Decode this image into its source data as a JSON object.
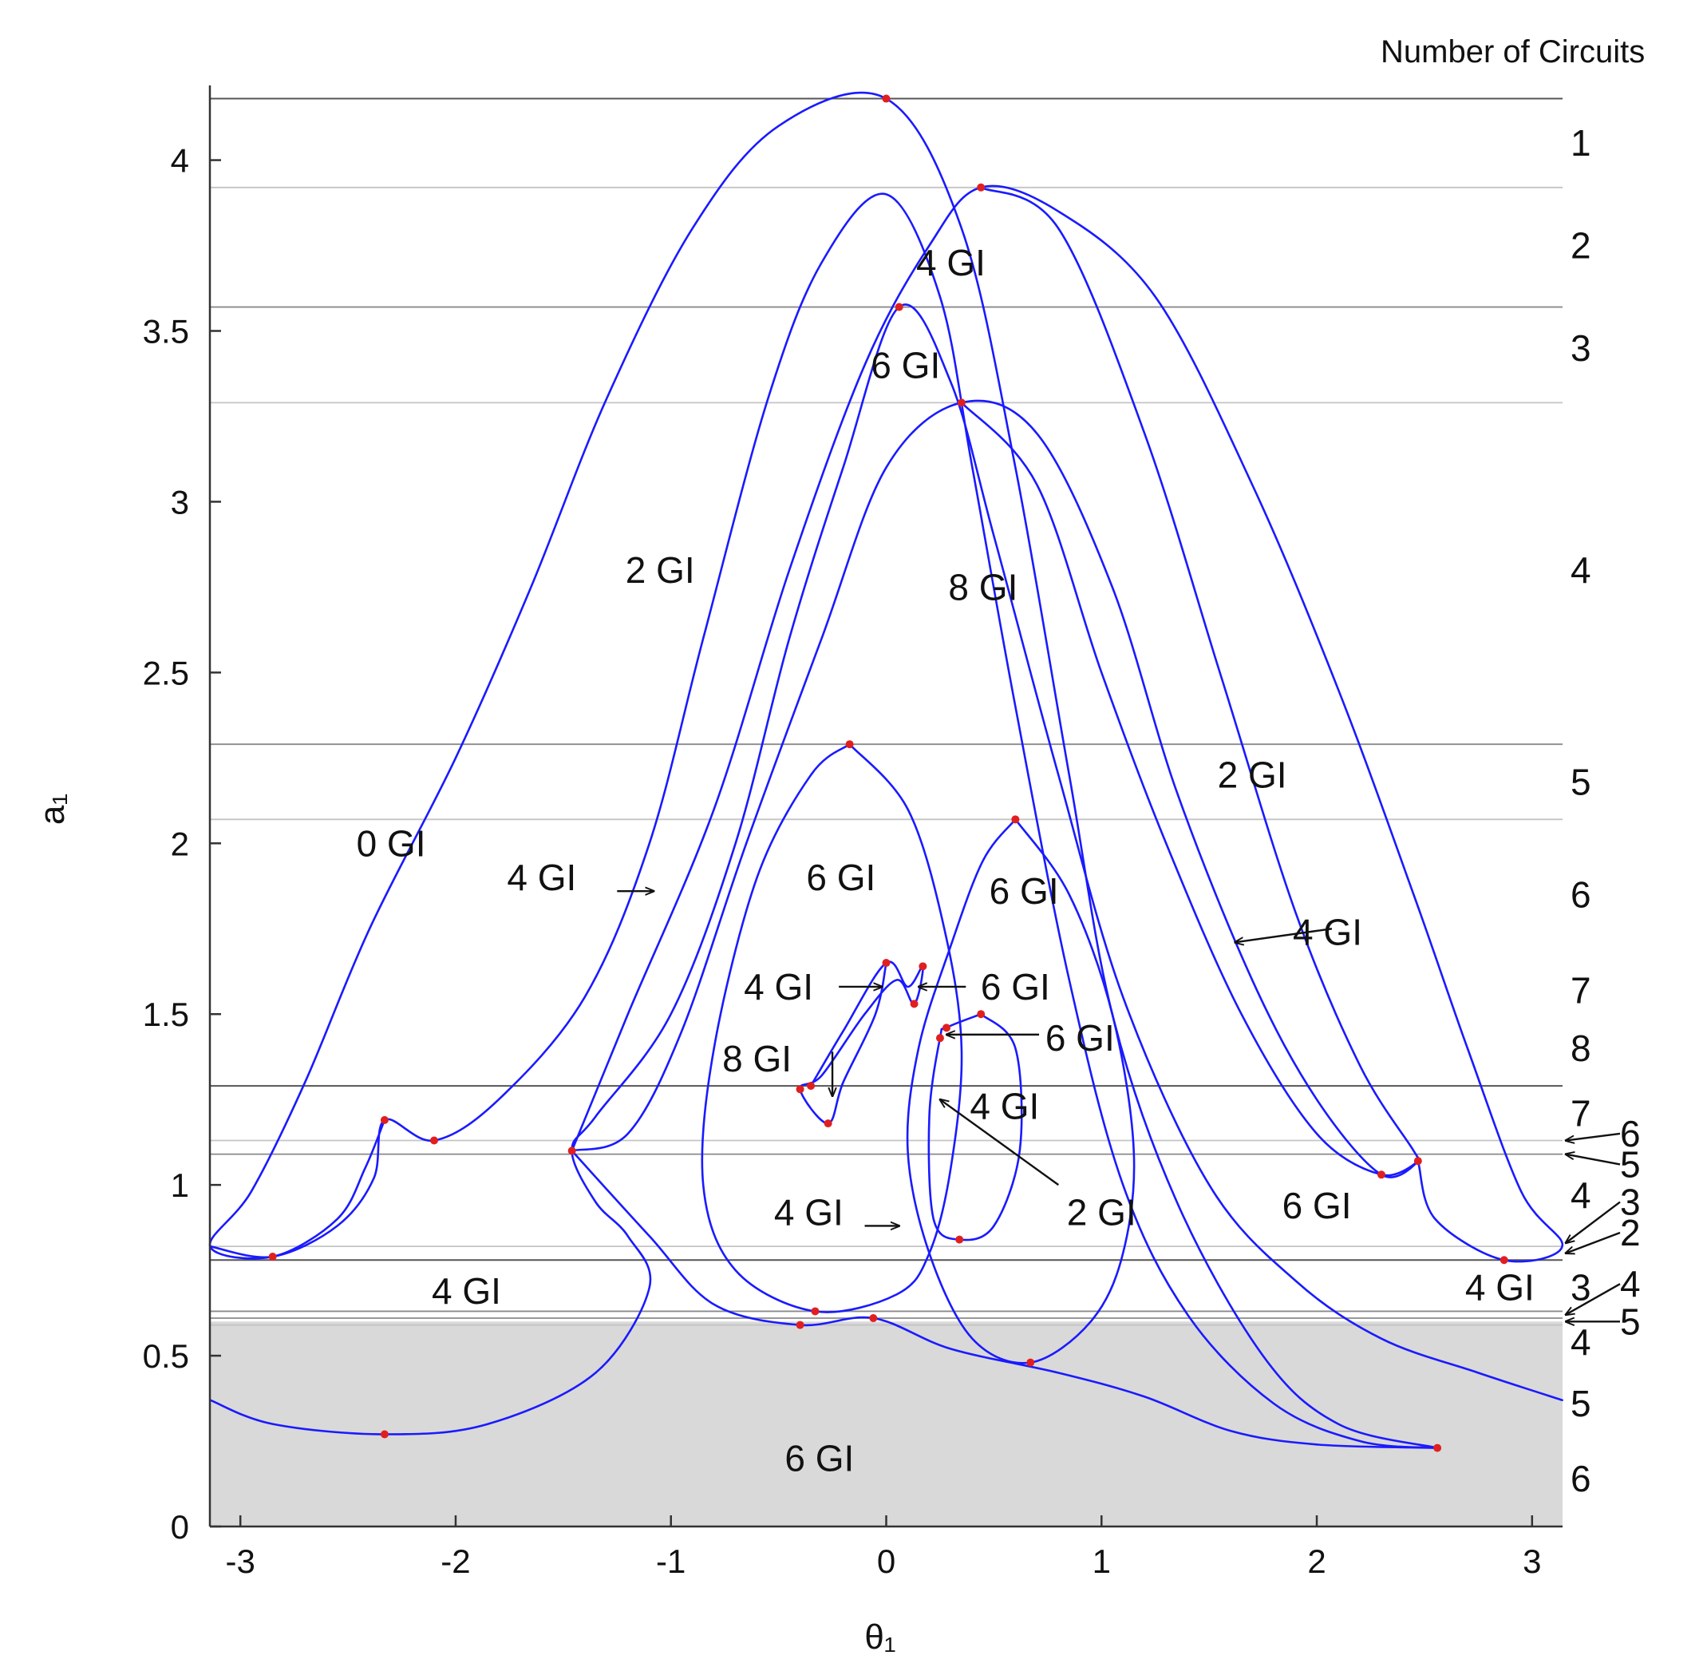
{
  "chart_data": {
    "type": "line",
    "xlabel": "θ₁",
    "ylabel": "a₁",
    "xlim": [
      -3.14159,
      3.14159
    ],
    "ylim": [
      0,
      4.2
    ],
    "x_ticks": [
      "-3",
      "-2",
      "-1",
      "0",
      "1",
      "2",
      "3"
    ],
    "x_tick_values": [
      -3,
      -2,
      -1,
      0,
      1,
      2,
      3
    ],
    "y_ticks": [
      "0",
      "0.5",
      "1",
      "1.5",
      "2",
      "2.5",
      "3",
      "3.5",
      "4"
    ],
    "y_tick_values": [
      0,
      0.5,
      1,
      1.5,
      2,
      2.5,
      3,
      3.5,
      4
    ],
    "right_header": "Number of Circuits",
    "shaded_band": [
      0,
      0.6
    ],
    "shaded_color": "#d9d9d9",
    "curve_color": "#1a1aff",
    "cusp_color": "#e02020",
    "horizontal_lines": [
      {
        "y": 4.18,
        "style": "dark"
      },
      {
        "y": 3.92,
        "style": "light"
      },
      {
        "y": 3.57,
        "style": "normal"
      },
      {
        "y": 3.29,
        "style": "light"
      },
      {
        "y": 2.29,
        "style": "normal"
      },
      {
        "y": 2.07,
        "style": "light"
      },
      {
        "y": 1.29,
        "style": "dark"
      },
      {
        "y": 1.13,
        "style": "light"
      },
      {
        "y": 1.09,
        "style": "normal"
      },
      {
        "y": 0.82,
        "style": "light"
      },
      {
        "y": 0.78,
        "style": "dark"
      },
      {
        "y": 0.63,
        "style": "normal"
      },
      {
        "y": 0.61,
        "style": "normal"
      },
      {
        "y": 0.59,
        "style": "light"
      }
    ],
    "series": [
      {
        "points": [
          [
            -3.14,
            0.82
          ],
          [
            -2.85,
            0.79
          ],
          [
            -2.55,
            0.88
          ],
          [
            -2.38,
            1.02
          ],
          [
            -2.33,
            1.19
          ],
          [
            -2.1,
            1.13
          ],
          [
            -1.8,
            1.25
          ],
          [
            -1.4,
            1.55
          ],
          [
            -1.1,
            2.0
          ],
          [
            -0.85,
            2.6
          ],
          [
            -0.55,
            3.3
          ],
          [
            -0.3,
            3.7
          ],
          [
            0.0,
            3.9
          ],
          [
            0.25,
            3.6
          ],
          [
            0.4,
            3.1
          ],
          [
            0.6,
            2.4
          ],
          [
            0.85,
            1.6
          ],
          [
            1.1,
            1.0
          ],
          [
            1.4,
            0.62
          ],
          [
            1.8,
            0.36
          ],
          [
            2.2,
            0.25
          ],
          [
            2.56,
            0.23
          ]
        ]
      },
      {
        "points": [
          [
            -3.14,
            0.37
          ],
          [
            -2.85,
            0.3
          ],
          [
            -2.33,
            0.27
          ],
          [
            -1.85,
            0.3
          ],
          [
            -1.35,
            0.45
          ],
          [
            -1.1,
            0.7
          ],
          [
            -1.2,
            0.85
          ],
          [
            -1.35,
            0.95
          ],
          [
            -1.46,
            1.1
          ],
          [
            -1.35,
            1.2
          ],
          [
            -1.0,
            1.5
          ],
          [
            -0.7,
            2.0
          ],
          [
            -0.45,
            2.6
          ],
          [
            -0.2,
            3.1
          ],
          [
            0.06,
            3.57
          ],
          [
            0.3,
            3.35
          ],
          [
            0.5,
            2.9
          ],
          [
            0.8,
            2.2
          ],
          [
            1.1,
            1.55
          ],
          [
            1.5,
            1.0
          ],
          [
            1.9,
            0.72
          ],
          [
            2.3,
            0.55
          ],
          [
            2.75,
            0.45
          ],
          [
            3.14,
            0.37
          ]
        ]
      },
      {
        "points": [
          [
            -2.33,
            1.19
          ],
          [
            -2.42,
            1.05
          ],
          [
            -2.55,
            0.9
          ],
          [
            -2.85,
            0.79
          ],
          [
            -3.14,
            0.82
          ],
          [
            -2.95,
            0.98
          ],
          [
            -2.7,
            1.3
          ],
          [
            -2.4,
            1.75
          ],
          [
            -2.0,
            2.25
          ],
          [
            -1.65,
            2.75
          ],
          [
            -1.3,
            3.3
          ],
          [
            -0.9,
            3.8
          ],
          [
            -0.5,
            4.1
          ],
          [
            0.0,
            4.18
          ],
          [
            0.35,
            3.8
          ],
          [
            0.6,
            3.1
          ],
          [
            0.85,
            2.2
          ],
          [
            1.05,
            1.5
          ],
          [
            1.35,
            0.95
          ],
          [
            1.75,
            0.5
          ],
          [
            2.1,
            0.3
          ],
          [
            2.56,
            0.23
          ]
        ]
      },
      {
        "points": [
          [
            0.44,
            3.92
          ],
          [
            0.8,
            3.8
          ],
          [
            1.2,
            3.2
          ],
          [
            1.55,
            2.5
          ],
          [
            1.9,
            1.8
          ],
          [
            2.2,
            1.35
          ],
          [
            2.45,
            1.1
          ],
          [
            2.47,
            1.07
          ],
          [
            2.55,
            0.9
          ],
          [
            2.87,
            0.78
          ],
          [
            3.14,
            0.82
          ],
          [
            2.95,
            0.98
          ],
          [
            2.7,
            1.4
          ],
          [
            2.45,
            1.85
          ],
          [
            2.1,
            2.45
          ],
          [
            1.7,
            3.05
          ],
          [
            1.25,
            3.6
          ],
          [
            0.8,
            3.85
          ],
          [
            0.44,
            3.92
          ],
          [
            0.2,
            3.75
          ],
          [
            -0.1,
            3.4
          ],
          [
            -0.45,
            2.8
          ],
          [
            -0.8,
            2.1
          ],
          [
            -1.2,
            1.5
          ],
          [
            -1.46,
            1.1
          ]
        ]
      },
      {
        "points": [
          [
            0.35,
            3.29
          ],
          [
            0.7,
            3.05
          ],
          [
            1.0,
            2.5
          ],
          [
            1.3,
            2.0
          ],
          [
            1.65,
            1.5
          ],
          [
            2.0,
            1.15
          ],
          [
            2.3,
            1.03
          ],
          [
            2.47,
            1.07
          ],
          [
            2.3,
            1.03
          ],
          [
            2.0,
            1.25
          ],
          [
            1.7,
            1.6
          ],
          [
            1.35,
            2.15
          ],
          [
            1.05,
            2.75
          ],
          [
            0.7,
            3.2
          ],
          [
            0.35,
            3.29
          ],
          [
            0.0,
            3.1
          ],
          [
            -0.3,
            2.6
          ],
          [
            -0.65,
            2.0
          ],
          [
            -0.95,
            1.45
          ],
          [
            -1.2,
            1.15
          ],
          [
            -1.46,
            1.1
          ]
        ]
      },
      {
        "points": [
          [
            -1.46,
            1.1
          ],
          [
            -1.1,
            0.85
          ],
          [
            -0.8,
            0.65
          ],
          [
            -0.4,
            0.59
          ],
          [
            -0.06,
            0.61
          ],
          [
            0.3,
            0.52
          ],
          [
            0.8,
            0.45
          ],
          [
            1.2,
            0.38
          ],
          [
            1.6,
            0.28
          ],
          [
            2.0,
            0.24
          ],
          [
            2.56,
            0.23
          ]
        ]
      },
      {
        "points": [
          [
            -0.17,
            2.29
          ],
          [
            0.1,
            2.1
          ],
          [
            0.27,
            1.75
          ],
          [
            0.35,
            1.4
          ],
          [
            0.3,
            1.05
          ],
          [
            0.2,
            0.8
          ],
          [
            0.05,
            0.68
          ],
          [
            -0.33,
            0.63
          ],
          [
            -0.7,
            0.75
          ],
          [
            -0.85,
            1.0
          ],
          [
            -0.8,
            1.4
          ],
          [
            -0.6,
            1.9
          ],
          [
            -0.35,
            2.2
          ],
          [
            -0.17,
            2.29
          ]
        ]
      },
      {
        "points": [
          [
            0.6,
            2.07
          ],
          [
            0.85,
            1.85
          ],
          [
            1.05,
            1.5
          ],
          [
            1.15,
            1.1
          ],
          [
            1.1,
            0.8
          ],
          [
            0.95,
            0.6
          ],
          [
            0.67,
            0.48
          ],
          [
            0.4,
            0.55
          ],
          [
            0.2,
            0.8
          ],
          [
            0.1,
            1.1
          ],
          [
            0.15,
            1.4
          ],
          [
            0.3,
            1.7
          ],
          [
            0.45,
            1.95
          ],
          [
            0.6,
            2.07
          ]
        ]
      },
      {
        "points": [
          [
            0.44,
            1.5
          ],
          [
            0.6,
            1.4
          ],
          [
            0.62,
            1.1
          ],
          [
            0.5,
            0.88
          ],
          [
            0.34,
            0.84
          ],
          [
            0.22,
            0.9
          ],
          [
            0.2,
            1.2
          ],
          [
            0.25,
            1.43
          ],
          [
            0.28,
            1.46
          ],
          [
            0.44,
            1.5
          ]
        ]
      },
      {
        "points": [
          [
            -0.35,
            1.29
          ],
          [
            -0.2,
            1.45
          ],
          [
            0.0,
            1.65
          ],
          [
            0.1,
            1.58
          ],
          [
            0.17,
            1.64
          ],
          [
            0.13,
            1.53
          ],
          [
            0.05,
            1.6
          ],
          [
            -0.1,
            1.5
          ],
          [
            -0.3,
            1.32
          ],
          [
            -0.4,
            1.28
          ],
          [
            -0.27,
            1.18
          ],
          [
            -0.2,
            1.3
          ],
          [
            -0.05,
            1.5
          ],
          [
            0.0,
            1.65
          ]
        ]
      }
    ],
    "cusp_points": [
      [
        0,
        4.18
      ],
      [
        0.44,
        3.92
      ],
      [
        0.06,
        3.57
      ],
      [
        0.35,
        3.29
      ],
      [
        -0.17,
        2.29
      ],
      [
        0.6,
        2.07
      ],
      [
        0.0,
        1.65
      ],
      [
        0.17,
        1.64
      ],
      [
        0.13,
        1.53
      ],
      [
        0.28,
        1.46
      ],
      [
        0.25,
        1.43
      ],
      [
        0.44,
        1.5
      ],
      [
        -0.4,
        1.28
      ],
      [
        -0.35,
        1.29
      ],
      [
        -0.27,
        1.18
      ],
      [
        -2.33,
        1.19
      ],
      [
        -2.1,
        1.13
      ],
      [
        -1.46,
        1.1
      ],
      [
        2.3,
        1.03
      ],
      [
        2.47,
        1.07
      ],
      [
        -2.85,
        0.79
      ],
      [
        2.87,
        0.78
      ],
      [
        0.34,
        0.84
      ],
      [
        -0.33,
        0.63
      ],
      [
        -0.4,
        0.59
      ],
      [
        -0.06,
        0.61
      ],
      [
        0.67,
        0.48
      ],
      [
        -2.33,
        0.27
      ],
      [
        2.56,
        0.23
      ]
    ],
    "region_labels": [
      {
        "text": "4 GI",
        "x": 0.3,
        "y": 3.7
      },
      {
        "text": "6 GI",
        "x": 0.09,
        "y": 3.4
      },
      {
        "text": "2 GI",
        "x": -1.05,
        "y": 2.8
      },
      {
        "text": "8 GI",
        "x": 0.45,
        "y": 2.75
      },
      {
        "text": "2 GI",
        "x": 1.7,
        "y": 2.2
      },
      {
        "text": "0 GI",
        "x": -2.3,
        "y": 2.0
      },
      {
        "text": "4 GI",
        "x": -1.6,
        "y": 1.9
      },
      {
        "text": "6 GI",
        "x": -0.21,
        "y": 1.9
      },
      {
        "text": "6 GI",
        "x": 0.64,
        "y": 1.86
      },
      {
        "text": "4 GI",
        "x": 2.05,
        "y": 1.74
      },
      {
        "text": "4 GI",
        "x": -0.5,
        "y": 1.58
      },
      {
        "text": "6 GI",
        "x": 0.6,
        "y": 1.58
      },
      {
        "text": "6 GI",
        "x": 0.9,
        "y": 1.43
      },
      {
        "text": "8 GI",
        "x": -0.6,
        "y": 1.37
      },
      {
        "text": "4 GI",
        "x": 0.55,
        "y": 1.23
      },
      {
        "text": "4 GI",
        "x": -0.36,
        "y": 0.92
      },
      {
        "text": "2 GI",
        "x": 1.0,
        "y": 0.92
      },
      {
        "text": "6 GI",
        "x": 2.0,
        "y": 0.94
      },
      {
        "text": "4 GI",
        "x": -1.95,
        "y": 0.69
      },
      {
        "text": "4 GI",
        "x": 2.85,
        "y": 0.7
      },
      {
        "text": "6 GI",
        "x": -0.31,
        "y": 0.2
      }
    ],
    "annotation_arrows": [
      {
        "from": [
          -1.25,
          1.86
        ],
        "to": [
          -1.08,
          1.86
        ]
      },
      {
        "from": [
          2.07,
          1.75
        ],
        "to": [
          1.62,
          1.71
        ]
      },
      {
        "from": [
          -0.22,
          1.58
        ],
        "to": [
          -0.02,
          1.58
        ]
      },
      {
        "from": [
          0.37,
          1.58
        ],
        "to": [
          0.15,
          1.58
        ]
      },
      {
        "from": [
          0.71,
          1.44
        ],
        "to": [
          0.28,
          1.44
        ]
      },
      {
        "from": [
          -0.25,
          1.39
        ],
        "to": [
          -0.25,
          1.26
        ]
      },
      {
        "from": [
          0.8,
          1.0
        ],
        "to": [
          0.25,
          1.25
        ]
      },
      {
        "from": [
          -0.1,
          0.88
        ],
        "to": [
          0.06,
          0.88
        ]
      }
    ],
    "circuit_labels": [
      {
        "text": "1",
        "y": 4.05
      },
      {
        "text": "2",
        "y": 3.75
      },
      {
        "text": "3",
        "y": 3.45
      },
      {
        "text": "4",
        "y": 2.8
      },
      {
        "text": "5",
        "y": 2.18
      },
      {
        "text": "6",
        "y": 1.85
      },
      {
        "text": "7",
        "y": 1.57
      },
      {
        "text": "8",
        "y": 1.4
      },
      {
        "text": "7",
        "y": 1.21
      },
      {
        "text": "4",
        "y": 0.97
      },
      {
        "text": "3",
        "y": 0.7
      },
      {
        "text": "4",
        "y": 0.54
      },
      {
        "text": "5",
        "y": 0.36
      },
      {
        "text": "6",
        "y": 0.14
      }
    ],
    "outside_labels": [
      {
        "text": "6",
        "y": 1.15,
        "arrow_to_y": 1.13
      },
      {
        "text": "5",
        "y": 1.06,
        "arrow_to_y": 1.09
      },
      {
        "text": "3",
        "y": 0.95,
        "arrow_to_y": 0.83
      },
      {
        "text": "2",
        "y": 0.86,
        "arrow_to_y": 0.8
      },
      {
        "text": "4",
        "y": 0.71,
        "arrow_to_y": 0.62
      },
      {
        "text": "5",
        "y": 0.6,
        "arrow_to_y": 0.6
      }
    ]
  }
}
